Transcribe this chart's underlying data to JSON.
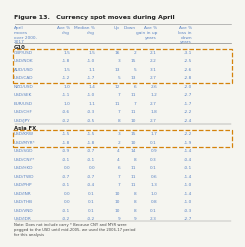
{
  "title": "Figure 13.   Currency spot moves during April",
  "g10_label": "G10",
  "asia_label": "Asia FX",
  "col_headers_left": [
    "April\nmoves\nover 2000-\n2017",
    "Ave %\nchg",
    "Median %\nchg",
    "Up",
    "Down"
  ],
  "col_headers_right": [
    "Ave %\ngain in up\nyears",
    "Ave %\nloss in\ndown\nyears"
  ],
  "g10_rows": [
    [
      "GBP/USD",
      "1.5",
      "1.5",
      "16",
      "2",
      "2.1",
      "-3.1"
    ],
    [
      "USD/NOK",
      "-1.8",
      "-1.0",
      "3",
      "15",
      "2.2",
      "-2.5"
    ],
    [
      "AUD/USD",
      "1.5",
      "1.1",
      "13",
      "5",
      "3.1",
      "-2.6"
    ],
    [
      "USD/CAD",
      "-1.2",
      "-1.7",
      "5",
      "13",
      "2.7",
      "-2.8"
    ],
    [
      "NZD/USD",
      "1.0",
      "1.4",
      "12",
      "6",
      "2.6",
      "-2.0"
    ],
    [
      "USD/SEK",
      "-1.1",
      "-1.0",
      "7",
      "11",
      "1.2",
      "-2.7"
    ],
    [
      "EUR/USD",
      "1.0",
      "1.1",
      "11",
      "7",
      "2.7",
      "-1.7"
    ],
    [
      "USD/CHF",
      "-0.6",
      "-0.3",
      "7",
      "11",
      "1.8",
      "-2.2"
    ],
    [
      "USD/JPY",
      "-0.2",
      "-0.5",
      "8",
      "10",
      "2.7",
      "-2.4"
    ]
  ],
  "asia_rows": [
    [
      "USD/KRW",
      "-1.5",
      "-1.5",
      "3",
      "15",
      "1.7",
      "-2.2"
    ],
    [
      "USD/MYR*",
      "-1.8",
      "-1.8",
      "2",
      "10",
      "0.1",
      "-1.9"
    ],
    [
      "USD/SGD",
      "-0.9",
      "-0.7",
      "4",
      "14",
      "0.9",
      "-1.4"
    ],
    [
      "USD/CNY*",
      "-0.1",
      "-0.1",
      "4",
      "8",
      "0.3",
      "-0.4"
    ],
    [
      "USD/HKD",
      "0.0",
      "0.0",
      "6",
      "11",
      "0.1",
      "-0.1"
    ],
    [
      "USD/TWD",
      "-0.7",
      "-0.7",
      "7",
      "11",
      "0.6",
      "-1.4"
    ],
    [
      "USD/PHP",
      "-0.1",
      "-0.4",
      "7",
      "11",
      "1.3",
      "-1.0"
    ],
    [
      "USD/INR",
      "0.0",
      "0.1",
      "10",
      "8",
      "1.0",
      "-1.4"
    ],
    [
      "USD/THB",
      "0.0",
      "0.1",
      "10",
      "8",
      "0.8",
      "-1.0"
    ],
    [
      "USD/VND",
      "-0.1",
      "0.1",
      "10",
      "8",
      "0.1",
      "-0.3"
    ],
    [
      "USD/IDR",
      "-0.2",
      "-0.2",
      "9",
      "9",
      "2.3",
      "-2.7"
    ]
  ],
  "g10_highlight_rows": [
    0,
    1,
    2,
    3
  ],
  "asia_highlight_rows": [
    0,
    1
  ],
  "note": "Note: Does not include carry * Because CNY and MYR were\npegged to the USD until mid-2005, we used the 2006-17 period\nfor this analysis",
  "color_blue": "#5B84C4",
  "color_orange": "#D4820A",
  "color_dark": "#222222",
  "color_gray": "#888888",
  "color_note": "#444444",
  "bg_color": "#F5F5F0"
}
